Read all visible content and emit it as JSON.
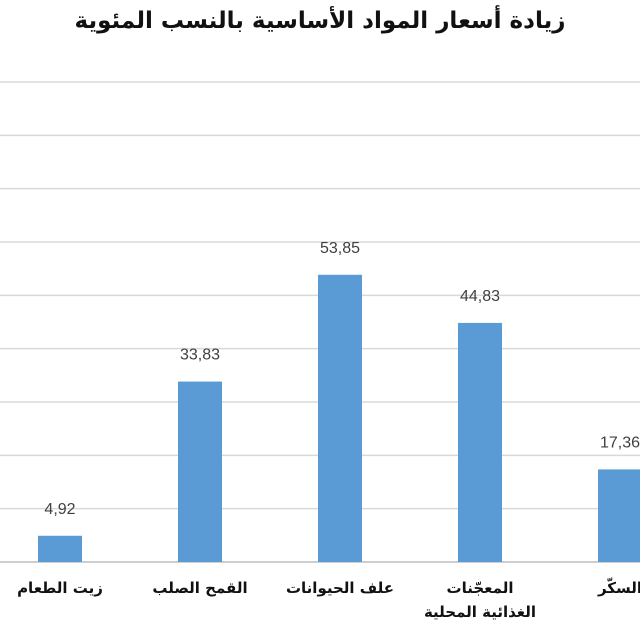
{
  "chart_data": {
    "type": "bar",
    "title": "زيادة أسعار المواد الأساسية بالنسب المئوية",
    "categories": [
      "زيت الطعام",
      "القمح الصلب",
      "علف الحيوانات",
      "المعجّنات الغذائية المحلية",
      "السكّر"
    ],
    "values": [
      4.92,
      33.83,
      53.85,
      44.83,
      17.36
    ],
    "value_labels": [
      "4,92",
      "33,83",
      "53,85",
      "44,83",
      "17,36"
    ],
    "color": "#5b9bd5",
    "ylim": [
      0,
      90
    ],
    "yticks": [
      0,
      10,
      20,
      30,
      40,
      50,
      60,
      70,
      80,
      90
    ],
    "grid": true
  }
}
